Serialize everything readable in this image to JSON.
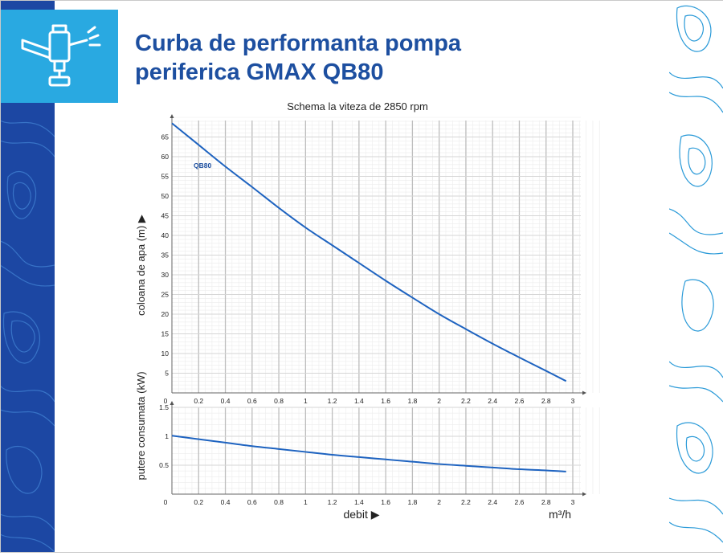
{
  "page": {
    "title": "Curba de performanta pompa periferica GMAX QB80",
    "icon": "sprinkler-icon",
    "colors": {
      "brand_dark": "#1c47a3",
      "brand_light": "#29a9e1",
      "title": "#1d4fa0",
      "curve": "#1e63c0"
    }
  },
  "chart_data": [
    {
      "type": "line",
      "title": "Schema la viteza de 2850 rpm",
      "xlabel": "",
      "ylabel": "coloana de apa (m) ▶",
      "xlim": [
        0,
        3
      ],
      "ylim": [
        0,
        70
      ],
      "xticks": [
        "0",
        "0.2",
        "0.4",
        "0.6",
        "0.8",
        "1",
        "1.2",
        "1.4",
        "1.6",
        "1.8",
        "2",
        "2.2",
        "2.4",
        "2.6",
        "2.8",
        "3"
      ],
      "yticks": [
        "5",
        "10",
        "15",
        "20",
        "25",
        "30",
        "35",
        "40",
        "45",
        "50",
        "55",
        "60",
        "65"
      ],
      "grid": true,
      "series": [
        {
          "name": "QB80",
          "x": [
            0,
            0.2,
            0.4,
            0.6,
            0.8,
            1,
            1.2,
            1.4,
            1.6,
            1.8,
            2,
            2.2,
            2.4,
            2.6,
            2.8,
            2.95
          ],
          "y": [
            68.5,
            63,
            57.5,
            52.3,
            47,
            42,
            37.5,
            33,
            28.5,
            24.2,
            20,
            16.2,
            12.5,
            9,
            5.6,
            3
          ]
        }
      ]
    },
    {
      "type": "line",
      "title": "",
      "xlabel": "debit ▶",
      "xunit": "m³/h",
      "ylabel": "putere consumata (kW)",
      "xlim": [
        0,
        3
      ],
      "ylim": [
        0,
        1.5
      ],
      "xticks": [
        "0",
        "0.2",
        "0.4",
        "0.6",
        "0.8",
        "1",
        "1.2",
        "1.4",
        "1.6",
        "1.8",
        "2",
        "2.2",
        "2.4",
        "2.6",
        "2.8",
        "3"
      ],
      "yticks": [
        "0.5",
        "1",
        "1.5"
      ],
      "grid": true,
      "series": [
        {
          "x": [
            0,
            0.2,
            0.4,
            0.6,
            0.8,
            1,
            1.2,
            1.4,
            1.6,
            1.8,
            2,
            2.2,
            2.4,
            2.6,
            2.8,
            2.95
          ],
          "y": [
            1.01,
            0.95,
            0.89,
            0.83,
            0.78,
            0.73,
            0.68,
            0.64,
            0.6,
            0.56,
            0.52,
            0.49,
            0.46,
            0.43,
            0.41,
            0.39
          ]
        }
      ]
    }
  ]
}
